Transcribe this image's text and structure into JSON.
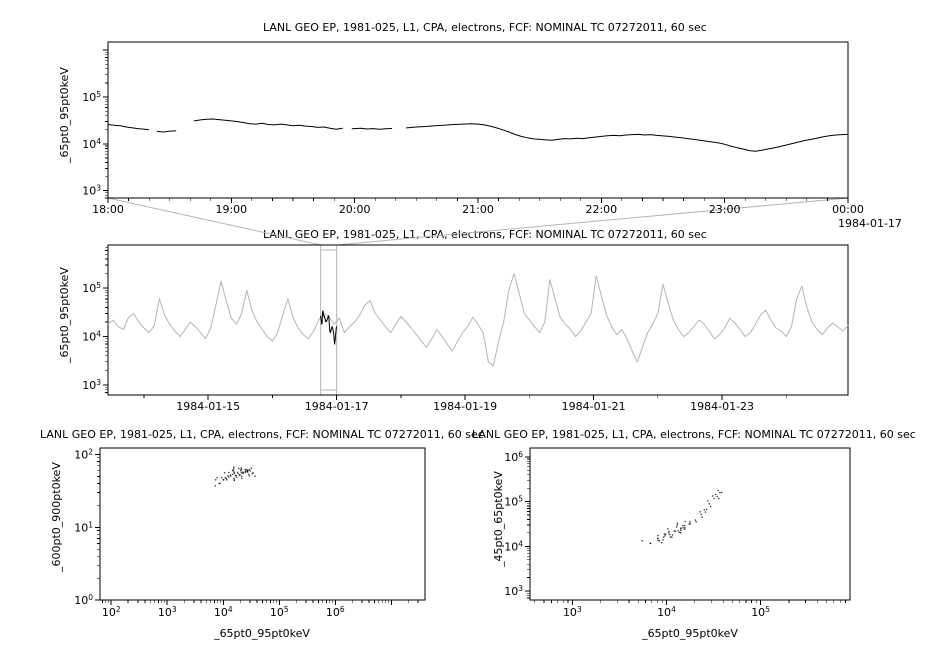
{
  "colors": {
    "series": "#000000",
    "context_series": "#b5b5b5",
    "zoom_box": "#b5b5b5",
    "axis": "#000000",
    "background": "#ffffff"
  },
  "chart_data": [
    {
      "id": "panel-top",
      "type": "line",
      "title": "LANL GEO EP, 1981-025, L1, CPA, electrons, FCF: NOMINAL TC 07272011, 60 sec",
      "ylabel": "_65pt0_95pt0keV",
      "x_annotation": "1984-01-17",
      "xscale": "linear",
      "yscale": "log",
      "xlim": [
        18,
        24
      ],
      "ylim": [
        700,
        1500000
      ],
      "xticks": {
        "values": [
          18,
          19,
          20,
          21,
          22,
          23,
          24
        ],
        "labels": [
          "18:00",
          "19:00",
          "20:00",
          "21:00",
          "22:00",
          "23:00",
          "00:00"
        ],
        "minor_step": 0.1666667
      },
      "yticks": {
        "label_exponents": [
          3,
          4,
          5
        ]
      },
      "points": [
        [
          18.0,
          26000
        ],
        [
          18.05,
          25000
        ],
        [
          18.1,
          24500
        ],
        [
          18.15,
          23000
        ],
        [
          18.2,
          22000
        ],
        [
          18.25,
          21000
        ],
        [
          18.3,
          20500
        ],
        [
          18.33,
          20000
        ],
        null,
        [
          18.4,
          18500
        ],
        [
          18.45,
          18000
        ],
        [
          18.5,
          18800
        ],
        [
          18.55,
          19000
        ],
        null,
        [
          18.7,
          31000
        ],
        [
          18.75,
          32500
        ],
        [
          18.8,
          33500
        ],
        [
          18.85,
          34000
        ],
        [
          18.9,
          33000
        ],
        [
          18.95,
          32000
        ],
        [
          19.0,
          31000
        ],
        [
          19.05,
          30000
        ],
        [
          19.1,
          28500
        ],
        [
          19.15,
          27000
        ],
        [
          19.2,
          26500
        ],
        [
          19.25,
          27500
        ],
        [
          19.3,
          26000
        ],
        [
          19.35,
          25500
        ],
        [
          19.4,
          26500
        ],
        [
          19.45,
          25500
        ],
        [
          19.5,
          24500
        ],
        [
          19.55,
          25000
        ],
        [
          19.6,
          24000
        ],
        [
          19.65,
          23500
        ],
        [
          19.7,
          22500
        ],
        [
          19.75,
          23000
        ],
        [
          19.8,
          21500
        ],
        [
          19.85,
          20500
        ],
        [
          19.9,
          21500
        ],
        null,
        [
          19.98,
          21000
        ],
        [
          20.05,
          21500
        ],
        [
          20.1,
          20800
        ],
        [
          20.15,
          21200
        ],
        [
          20.2,
          20500
        ],
        [
          20.25,
          21000
        ],
        [
          20.3,
          21300
        ],
        null,
        [
          20.42,
          22000
        ],
        [
          20.5,
          23000
        ],
        [
          20.58,
          23500
        ],
        [
          20.65,
          24500
        ],
        [
          20.72,
          25000
        ],
        [
          20.8,
          26000
        ],
        [
          20.88,
          26500
        ],
        [
          20.95,
          27000
        ],
        [
          21.0,
          26500
        ],
        [
          21.05,
          25500
        ],
        [
          21.1,
          24000
        ],
        [
          21.15,
          22000
        ],
        [
          21.2,
          20000
        ],
        [
          21.25,
          18000
        ],
        [
          21.3,
          16000
        ],
        [
          21.35,
          14500
        ],
        [
          21.4,
          13500
        ],
        [
          21.45,
          12800
        ],
        [
          21.5,
          12500
        ],
        [
          21.55,
          12200
        ],
        [
          21.6,
          12000
        ],
        [
          21.65,
          12500
        ],
        [
          21.7,
          13000
        ],
        [
          21.75,
          12800
        ],
        [
          21.8,
          13200
        ],
        [
          21.85,
          13000
        ],
        [
          21.9,
          13500
        ],
        [
          21.95,
          14000
        ],
        [
          22.0,
          14500
        ],
        [
          22.05,
          15000
        ],
        [
          22.1,
          15200
        ],
        [
          22.15,
          15000
        ],
        [
          22.2,
          15500
        ],
        [
          22.25,
          15800
        ],
        [
          22.3,
          16000
        ],
        [
          22.35,
          15500
        ],
        [
          22.4,
          15800
        ],
        [
          22.45,
          15200
        ],
        [
          22.5,
          14800
        ],
        [
          22.55,
          14500
        ],
        [
          22.6,
          14000
        ],
        [
          22.65,
          13500
        ],
        [
          22.7,
          13000
        ],
        [
          22.75,
          12500
        ],
        [
          22.8,
          12000
        ],
        [
          22.85,
          11500
        ],
        [
          22.9,
          11000
        ],
        [
          22.95,
          10500
        ],
        [
          23.0,
          9800
        ],
        [
          23.05,
          9000
        ],
        [
          23.1,
          8300
        ],
        [
          23.15,
          7800
        ],
        [
          23.2,
          7200
        ],
        [
          23.25,
          7000
        ],
        [
          23.3,
          7300
        ],
        [
          23.35,
          7800
        ],
        [
          23.4,
          8200
        ],
        [
          23.45,
          8800
        ],
        [
          23.5,
          9500
        ],
        [
          23.55,
          10200
        ],
        [
          23.6,
          11000
        ],
        [
          23.65,
          11800
        ],
        [
          23.7,
          12500
        ],
        [
          23.75,
          13300
        ],
        [
          23.8,
          14200
        ],
        [
          23.85,
          15000
        ],
        [
          23.9,
          15500
        ],
        [
          23.95,
          15800
        ],
        [
          24.0,
          16000
        ]
      ]
    },
    {
      "id": "panel-context",
      "type": "line",
      "title": "LANL GEO EP, 1981-025, L1, CPA, electrons, FCF: NOMINAL TC 07272011, 60 sec",
      "ylabel": "_65pt0_95pt0keV",
      "xscale": "linear",
      "yscale": "log",
      "xlim": [
        13.44,
        24.96
      ],
      "ylim": [
        620,
        780000
      ],
      "xticks": {
        "values": [
          15,
          17,
          19,
          21,
          23
        ],
        "labels": [
          "1984-01-15",
          "1984-01-17",
          "1984-01-19",
          "1984-01-21",
          "1984-01-23"
        ],
        "minor_step": 1
      },
      "yticks": {
        "label_exponents": [
          3,
          4,
          5
        ]
      },
      "highlight_range": [
        16.75,
        17.0
      ],
      "x_start": 13.44,
      "x_step": 0.08,
      "y": [
        18000,
        22000,
        16000,
        14000,
        25000,
        30000,
        20000,
        15000,
        12000,
        17000,
        60000,
        28000,
        18000,
        13000,
        10000,
        14000,
        20000,
        16000,
        12000,
        9000,
        15000,
        45000,
        140000,
        55000,
        24000,
        18000,
        30000,
        90000,
        35000,
        20000,
        14000,
        10000,
        8000,
        12000,
        28000,
        60000,
        25000,
        15000,
        11000,
        9000,
        13000,
        22000,
        30000,
        26000,
        18000,
        24000,
        12000,
        16000,
        20000,
        28000,
        45000,
        55000,
        30000,
        22000,
        16000,
        12000,
        18000,
        26000,
        20000,
        15000,
        11000,
        8000,
        6000,
        9000,
        14000,
        10000,
        7000,
        5000,
        8000,
        12000,
        16000,
        25000,
        18000,
        12000,
        3000,
        2500,
        8000,
        20000,
        90000,
        200000,
        80000,
        30000,
        22000,
        16000,
        12000,
        20000,
        150000,
        60000,
        25000,
        18000,
        14000,
        10000,
        13000,
        20000,
        30000,
        180000,
        70000,
        28000,
        16000,
        11000,
        14000,
        9000,
        5000,
        3000,
        6000,
        12000,
        18000,
        30000,
        120000,
        50000,
        22000,
        14000,
        10000,
        12000,
        16000,
        22000,
        18000,
        13000,
        9000,
        11000,
        15000,
        24000,
        19000,
        14000,
        10000,
        12000,
        18000,
        28000,
        35000,
        22000,
        15000,
        13000,
        10000,
        16000,
        60000,
        110000,
        40000,
        20000,
        14000,
        11000,
        15000,
        19000,
        16000,
        13000,
        17000
      ]
    },
    {
      "id": "scatter-left",
      "type": "scatter",
      "title": "LANL GEO EP, 1981-025, L1, CPA, electrons, FCF: NOMINAL TC 07272011, 60 sec",
      "ylabel": "_600pt0_900pt0keV",
      "xlabel": "_65pt0_95pt0keV",
      "xscale": "log",
      "yscale": "log",
      "xlim": [
        63,
        40000000
      ],
      "ylim": [
        1,
        123
      ],
      "xticks": {
        "label_exponents": [
          2,
          3,
          4,
          5,
          6
        ]
      },
      "yticks": {
        "label_exponents": [
          0,
          1,
          2
        ]
      },
      "points": [
        [
          9000,
          45
        ],
        [
          9500,
          48
        ],
        [
          10000,
          50
        ],
        [
          10500,
          52
        ],
        [
          11000,
          47
        ],
        [
          11500,
          55
        ],
        [
          12000,
          50
        ],
        [
          12500,
          53
        ],
        [
          13000,
          48
        ],
        [
          13500,
          56
        ],
        [
          14000,
          52
        ],
        [
          14500,
          49
        ],
        [
          15000,
          54
        ],
        [
          15500,
          58
        ],
        [
          16000,
          51
        ],
        [
          16500,
          55
        ],
        [
          17000,
          60
        ],
        [
          17500,
          53
        ],
        [
          18000,
          57
        ],
        [
          18500,
          50
        ],
        [
          19000,
          55
        ],
        [
          19500,
          60
        ],
        [
          20000,
          52
        ],
        [
          20500,
          58
        ],
        [
          21000,
          54
        ],
        [
          21500,
          62
        ],
        [
          22000,
          56
        ],
        [
          23000,
          60
        ],
        [
          24000,
          55
        ],
        [
          25000,
          63
        ],
        [
          26000,
          58
        ],
        [
          27000,
          52
        ],
        [
          28000,
          60
        ],
        [
          29000,
          56
        ],
        [
          30000,
          62
        ],
        [
          31000,
          58
        ],
        [
          32000,
          54
        ],
        [
          8500,
          42
        ],
        [
          8000,
          46
        ],
        [
          7500,
          40
        ],
        [
          10200,
          44
        ],
        [
          12200,
          46
        ],
        [
          14200,
          44
        ],
        [
          16200,
          48
        ],
        [
          18200,
          46
        ],
        [
          20200,
          48
        ],
        [
          22500,
          50
        ],
        [
          24500,
          52
        ],
        [
          26500,
          55
        ],
        [
          28500,
          58
        ],
        [
          30500,
          60
        ],
        [
          33000,
          57
        ],
        [
          34000,
          61
        ],
        [
          13800,
          60
        ],
        [
          15800,
          62
        ],
        [
          17800,
          64
        ],
        [
          19800,
          61
        ],
        [
          21800,
          65
        ],
        [
          23800,
          63
        ],
        [
          7000,
          38
        ]
      ]
    },
    {
      "id": "scatter-right",
      "type": "scatter",
      "title": "LANL GEO EP, 1981-025, L1, CPA, electrons, FCF: NOMINAL TC 07272011, 60 sec",
      "ylabel": "_45pt0_65pt0keV",
      "xlabel": "_65pt0_95pt0keV",
      "xscale": "log",
      "yscale": "log",
      "xlim": [
        355,
        891000
      ],
      "ylim": [
        631,
        1580000
      ],
      "xticks": {
        "label_exponents": [
          3,
          4,
          5
        ]
      },
      "yticks": {
        "label_exponents": [
          3,
          4,
          5,
          6
        ]
      },
      "points": [
        [
          6000,
          12000
        ],
        [
          6500,
          13000
        ],
        [
          7000,
          12500
        ],
        [
          7500,
          14000
        ],
        [
          8000,
          15000
        ],
        [
          8500,
          14500
        ],
        [
          9000,
          16000
        ],
        [
          9500,
          17000
        ],
        [
          10000,
          18000
        ],
        [
          10500,
          17500
        ],
        [
          11000,
          19000
        ],
        [
          11500,
          20000
        ],
        [
          12000,
          21000
        ],
        [
          12500,
          20500
        ],
        [
          13000,
          22000
        ],
        [
          13500,
          23000
        ],
        [
          14000,
          24000
        ],
        [
          14500,
          25000
        ],
        [
          15000,
          26000
        ],
        [
          16000,
          28000
        ],
        [
          17000,
          30000
        ],
        [
          18000,
          32000
        ],
        [
          19000,
          35000
        ],
        [
          20000,
          38000
        ],
        [
          21000,
          40000
        ],
        [
          22000,
          45000
        ],
        [
          23000,
          50000
        ],
        [
          24000,
          55000
        ],
        [
          25000,
          60000
        ],
        [
          26000,
          65000
        ],
        [
          27000,
          70000
        ],
        [
          28000,
          80000
        ],
        [
          29000,
          90000
        ],
        [
          30000,
          100000
        ],
        [
          31000,
          110000
        ],
        [
          32000,
          120000
        ],
        [
          33000,
          130000
        ],
        [
          34000,
          140000
        ],
        [
          35000,
          150000
        ],
        [
          36000,
          160000
        ],
        [
          37000,
          155000
        ],
        [
          38000,
          165000
        ],
        [
          8000,
          12000
        ],
        [
          9000,
          13500
        ],
        [
          10000,
          15000
        ],
        [
          11000,
          16500
        ],
        [
          12000,
          18000
        ],
        [
          13000,
          19500
        ],
        [
          14000,
          21000
        ],
        [
          15000,
          23000
        ],
        [
          12000,
          30000
        ],
        [
          13000,
          32000
        ],
        [
          14000,
          34000
        ],
        [
          15000,
          36000
        ],
        [
          16000,
          25000
        ],
        [
          17000,
          27000
        ],
        [
          10000,
          22000
        ],
        [
          11000,
          24000
        ],
        [
          9000,
          20000
        ],
        [
          8000,
          18000
        ]
      ]
    }
  ]
}
